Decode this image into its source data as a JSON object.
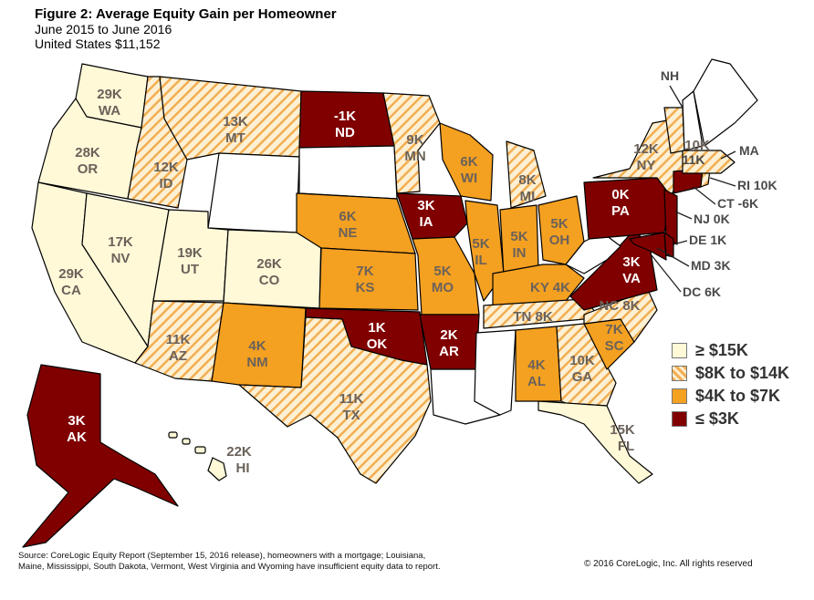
{
  "header": {
    "title": "Figure 2: Average Equity Gain per Homeowner",
    "period": "June 2015 to June 2016",
    "national": "United States $11,152"
  },
  "colors": {
    "high": "#fff9d8",
    "mid_stripe": "#f2ae52",
    "mid_bg": "#fdf0d4",
    "orange": "#f4a021",
    "dark": "#800000",
    "nodata": "#ffffff",
    "border": "#000000"
  },
  "legend": [
    {
      "key": "high",
      "label": "≥ $15K"
    },
    {
      "key": "mid",
      "label": "$8K to $14K"
    },
    {
      "key": "orange",
      "label": "$4K to $7K"
    },
    {
      "key": "dark",
      "label": "≤ $3K"
    }
  ],
  "states": {
    "WA": {
      "value": "29K",
      "abbr": "WA",
      "cat": "high"
    },
    "OR": {
      "value": "28K",
      "abbr": "OR",
      "cat": "high"
    },
    "CA": {
      "value": "29K",
      "abbr": "CA",
      "cat": "high"
    },
    "NV": {
      "value": "17K",
      "abbr": "NV",
      "cat": "high"
    },
    "ID": {
      "value": "12K",
      "abbr": "ID",
      "cat": "mid"
    },
    "MT": {
      "value": "13K",
      "abbr": "MT",
      "cat": "mid"
    },
    "UT": {
      "value": "19K",
      "abbr": "UT",
      "cat": "high"
    },
    "CO": {
      "value": "26K",
      "abbr": "CO",
      "cat": "high"
    },
    "AZ": {
      "value": "11K",
      "abbr": "AZ",
      "cat": "mid"
    },
    "NM": {
      "value": "4K",
      "abbr": "NM",
      "cat": "orange"
    },
    "ND": {
      "value": "-1K",
      "abbr": "ND",
      "cat": "dark"
    },
    "NE": {
      "value": "6K",
      "abbr": "NE",
      "cat": "orange"
    },
    "KS": {
      "value": "7K",
      "abbr": "KS",
      "cat": "orange"
    },
    "OK": {
      "value": "1K",
      "abbr": "OK",
      "cat": "dark"
    },
    "TX": {
      "value": "11K",
      "abbr": "TX",
      "cat": "mid"
    },
    "MN": {
      "value": "9K",
      "abbr": "MN",
      "cat": "mid"
    },
    "IA": {
      "value": "3K",
      "abbr": "IA",
      "cat": "dark"
    },
    "MO": {
      "value": "5K",
      "abbr": "MO",
      "cat": "orange"
    },
    "AR": {
      "value": "2K",
      "abbr": "AR",
      "cat": "dark"
    },
    "WI": {
      "value": "6K",
      "abbr": "WI",
      "cat": "orange"
    },
    "IL": {
      "value": "5K",
      "abbr": "IL",
      "cat": "orange"
    },
    "MI": {
      "value": "8K",
      "abbr": "MI",
      "cat": "mid"
    },
    "IN": {
      "value": "5K",
      "abbr": "IN",
      "cat": "orange"
    },
    "OH": {
      "value": "5K",
      "abbr": "OH",
      "cat": "orange"
    },
    "KY": {
      "label": "KY 4K",
      "cat": "orange"
    },
    "TN": {
      "label": "TN 8K",
      "cat": "mid"
    },
    "AL": {
      "value": "4K",
      "abbr": "AL",
      "cat": "orange"
    },
    "GA": {
      "value": "10K",
      "abbr": "GA",
      "cat": "mid"
    },
    "FL": {
      "value": "15K",
      "abbr": "FL",
      "cat": "high"
    },
    "SC": {
      "value": "7K",
      "abbr": "SC",
      "cat": "orange"
    },
    "NC": {
      "label": "NC 8K",
      "cat": "mid"
    },
    "VA": {
      "value": "3K",
      "abbr": "VA",
      "cat": "dark"
    },
    "PA": {
      "value": "0K",
      "abbr": "PA",
      "cat": "dark"
    },
    "NY": {
      "value": "12K",
      "abbr": "NY",
      "cat": "mid"
    },
    "AK": {
      "value": "3K",
      "abbr": "AK",
      "cat": "dark"
    },
    "HI": {
      "value": "22K",
      "abbr": "HI",
      "cat": "high"
    },
    "MA": {
      "value": "10K",
      "cat": "mid"
    }
  },
  "callouts": {
    "NH": "NH",
    "MA": "MA",
    "VT": "11K",
    "RI": "RI 10K",
    "CT": "CT -6K",
    "NJ": "NJ 0K",
    "DE": "DE 1K",
    "MD": "MD 3K",
    "DC": "DC 6K"
  },
  "footer": {
    "source": "Source: CoreLogic Equity Report (September 15, 2016 release), homeowners with a mortgage; Louisiana, Maine, Mississippi, South Dakota, Vermont, West Virginia and Wyoming have insufficient equity data to report.",
    "copyright": "© 2016 CoreLogic, Inc. All rights reserved"
  }
}
